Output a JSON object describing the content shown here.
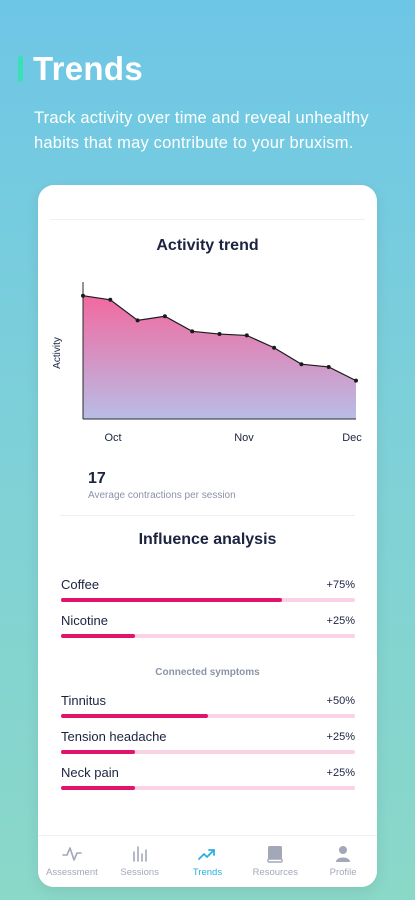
{
  "hero": {
    "title": "Trends",
    "subtitle": "Track activity over time and reveal unhealthy habits that may contribute to your bruxism."
  },
  "chart": {
    "title": "Activity trend",
    "ylabel": "Activity",
    "x_ticks": [
      "Oct",
      "Nov",
      "Dec"
    ]
  },
  "chart_data": {
    "type": "area",
    "title": "Activity trend",
    "xlabel": "",
    "ylabel": "Activity",
    "x_tick_labels": [
      "Oct",
      "Nov",
      "Dec"
    ],
    "x": [
      0,
      1,
      2,
      3,
      4,
      5,
      6,
      7,
      8,
      9,
      10
    ],
    "values": [
      90,
      87,
      72,
      75,
      64,
      62,
      61,
      52,
      40,
      38,
      28
    ],
    "ylim": [
      0,
      100
    ],
    "grid": false,
    "colors": {
      "line": "#1b1b1b",
      "fill_top": "#f2699f",
      "fill_bottom": "#b8bde6"
    }
  },
  "stat": {
    "value": "17",
    "label": "Average contractions per session"
  },
  "influence": {
    "title": "Influence analysis",
    "factors": [
      {
        "label": "Coffee",
        "value": "+75%",
        "fraction": 0.75
      },
      {
        "label": "Nicotine",
        "value": "+25%",
        "fraction": 0.25
      }
    ],
    "symptoms_heading": "Connected symptoms",
    "symptoms": [
      {
        "label": "Tinnitus",
        "value": "+50%",
        "fraction": 0.5
      },
      {
        "label": "Tension headache",
        "value": "+25%",
        "fraction": 0.25
      },
      {
        "label": "Neck pain",
        "value": "+25%",
        "fraction": 0.25
      }
    ]
  },
  "tabbar": {
    "active": "Trends",
    "active_color": "#2ab0e0",
    "items": [
      {
        "label": "Assessment",
        "icon": "pulse-icon"
      },
      {
        "label": "Sessions",
        "icon": "bars-icon"
      },
      {
        "label": "Trends",
        "icon": "trend-up-icon"
      },
      {
        "label": "Resources",
        "icon": "book-icon"
      },
      {
        "label": "Profile",
        "icon": "person-icon"
      }
    ]
  }
}
